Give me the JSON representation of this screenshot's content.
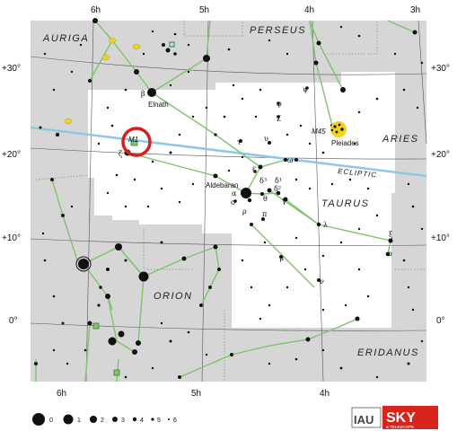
{
  "map": {
    "constellations": {
      "auriga": "AURIGA",
      "perseus": "PERSEUS",
      "aries": "ARIES",
      "taurus": "TAURUS",
      "orion": "ORION",
      "eridanus": "ERIDANUS"
    },
    "ecliptic_label": "ECLIPTIC",
    "stars": {
      "elnath": "Elnath",
      "aldebaran": "Aldebaran",
      "pleiades": "Pleiades",
      "m45": "M45",
      "m1": "M1"
    },
    "greek": {
      "beta": "β",
      "zeta": "ζ",
      "tau": "τ",
      "upsilon": "υ",
      "phi": "φ",
      "chi": "χ",
      "psi": "ψ",
      "omega": "ω",
      "epsilon": "ε",
      "delta3": "δ³",
      "delta1": "δ¹",
      "delta2": "δ²",
      "alpha": "α",
      "sigma": "σ",
      "theta": "θ",
      "gamma": "γ",
      "rho": "ρ",
      "pi": "π",
      "lambda": "λ",
      "mu": "μ",
      "nu": "ν",
      "xi": "ξ",
      "omicron": "ο"
    },
    "ra_labels": {
      "top": [
        "6h",
        "5h",
        "4h",
        "3h"
      ],
      "bottom": [
        "6h",
        "5h",
        "4h"
      ]
    },
    "dec_labels": {
      "left": [
        "+30°",
        "+20°",
        "+10°",
        "0°"
      ],
      "right": [
        "+30°",
        "+20°",
        "+10°",
        "0°"
      ]
    },
    "legend": {
      "magnitudes": [
        "0",
        "1",
        "2",
        "3",
        "4",
        "5",
        "6"
      ]
    },
    "logos": {
      "iau": "IAU",
      "sky": "SKY",
      "sky_sub": "& TELESCOPE"
    },
    "colors": {
      "background": "#d6d6d6",
      "taurus_region": "#ffffff",
      "lines": "#7dc46b",
      "ecliptic": "#8ec8e8",
      "highlight": "#d62020",
      "deep_sky": "#f2d21b",
      "logo_red": "#d8251c"
    }
  }
}
